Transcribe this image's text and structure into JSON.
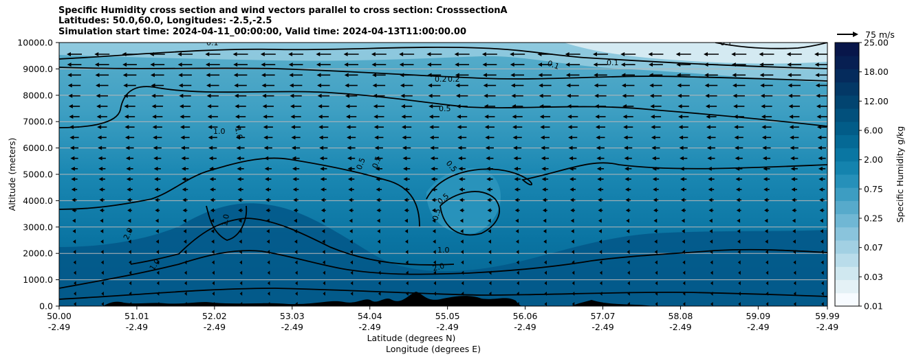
{
  "chart_data": {
    "type": "heatmap",
    "title_lines": [
      "Specific Humidity cross section and wind vectors parallel to cross section: CrosssectionA",
      "Latitudes: 50.0,60.0, Longitudes: -2.5,-2.5",
      "Simulation start time: 2024-04-11_00:00:00, Valid time: 2024-04-13T11:00:00.00"
    ],
    "xlabel_lat": "Latitude (degrees N)",
    "xlabel_lon": "Longitude (degrees E)",
    "ylabel": "Altitude (meters)",
    "colorbar_label": "Specific Humidity g/kg",
    "x_ticks": [
      {
        "lat": "50.00",
        "lon": "-2.49"
      },
      {
        "lat": "51.01",
        "lon": "-2.49"
      },
      {
        "lat": "52.02",
        "lon": "-2.49"
      },
      {
        "lat": "53.03",
        "lon": "-2.49"
      },
      {
        "lat": "54.04",
        "lon": "-2.49"
      },
      {
        "lat": "55.05",
        "lon": "-2.49"
      },
      {
        "lat": "56.06",
        "lon": "-2.49"
      },
      {
        "lat": "57.07",
        "lon": "-2.49"
      },
      {
        "lat": "58.08",
        "lon": "-2.49"
      },
      {
        "lat": "59.09",
        "lon": "-2.49"
      },
      {
        "lat": "59.99",
        "lon": "-2.49"
      }
    ],
    "y_ticks": [
      "0.0",
      "1000.0",
      "2000.0",
      "3000.0",
      "4000.0",
      "5000.0",
      "6000.0",
      "7000.0",
      "8000.0",
      "9000.0",
      "10000.0"
    ],
    "ylim": [
      0,
      10000
    ],
    "colorbar_levels": [
      "0.01",
      "0.03",
      "0.07",
      "0.25",
      "0.75",
      "2.00",
      "6.00",
      "12.00",
      "18.00",
      "25.00"
    ],
    "colorbar_colors": [
      "#f7fbff",
      "#e4f1f6",
      "#d0e8f0",
      "#b9dcea",
      "#a2d0e3",
      "#8ac4dc",
      "#70b7d4",
      "#57aacb",
      "#3d9dc2",
      "#2690b9",
      "#1483ae",
      "#0a76a2",
      "#056995",
      "#025c88",
      "#02507c",
      "#024470",
      "#033866",
      "#052b5c",
      "#071f52",
      "#08164a"
    ],
    "vector_key_label": "75 m/s",
    "contour_labels": [
      "0.1",
      "0.1",
      "0.1",
      "0.1",
      "0.2",
      "0.2",
      "0.5",
      "0.5",
      "0.5",
      "0.5",
      "0.5",
      "0.5",
      "1.0",
      "1.0",
      "1.0",
      "1.0",
      "1.0",
      "1.0",
      "2.0",
      "2.0"
    ],
    "grid": "horizontal"
  }
}
